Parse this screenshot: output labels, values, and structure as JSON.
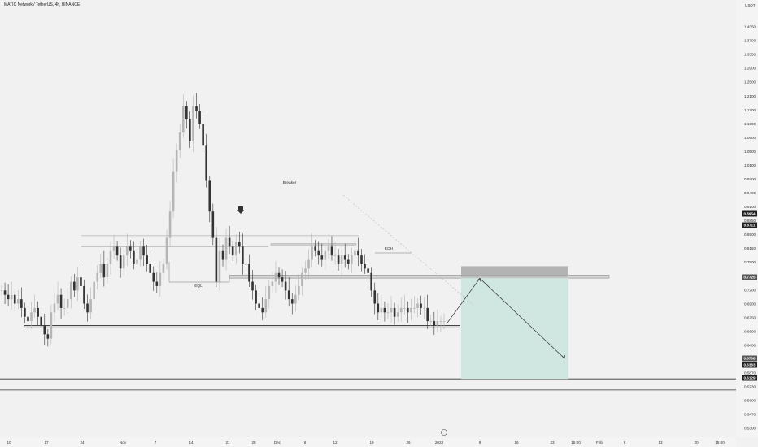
{
  "header": {
    "title": "MATIC Network / TetherUS, 4h, BINANCE"
  },
  "chart_data": {
    "type": "candlestick",
    "title": "MATIC Network / TetherUS, 4h, BINANCE",
    "currency_label": "USDT",
    "ylim": [
      0.52,
      1.48
    ],
    "y_ticks": [
      "1.4350",
      "1.3700",
      "1.3350",
      "1.2900",
      "1.2500",
      "1.2100",
      "1.1700",
      "1.1300",
      "1.0900",
      "1.0500",
      "1.0100",
      "0.9700",
      "0.9400",
      "0.9100",
      "0.8850",
      "0.8500",
      "0.8150",
      "0.7800",
      "0.7500",
      "0.7200",
      "0.6900",
      "0.6750",
      "0.6600",
      "0.6400",
      "0.6010",
      "0.5870",
      "0.5730",
      "0.5600",
      "0.5470",
      "0.5300"
    ],
    "x_ticks": [
      "10",
      "17",
      "24",
      "Nov",
      "7",
      "14",
      "21",
      "28",
      "Dec",
      "6",
      "12",
      "19",
      "26",
      "2023",
      "9",
      "16",
      "23",
      "15:00",
      "Feb",
      "6",
      "13",
      "20",
      "15:00"
    ],
    "price_badges": [
      {
        "value": "0.8954",
        "dark": true
      },
      {
        "value": "0.8711",
        "dark": true
      },
      {
        "value": "0.7725",
        "dark": false
      },
      {
        "value": "0.6708",
        "dark": false
      },
      {
        "value": "0.6383",
        "dark": true
      },
      {
        "value": "0.6129",
        "dark": true
      }
    ],
    "series": [
      {
        "close_path": [
          0.84,
          0.83,
          0.82,
          0.83,
          0.81,
          0.82,
          0.8,
          0.78,
          0.77,
          0.79,
          0.8,
          0.78,
          0.76,
          0.74,
          0.73,
          0.79,
          0.81,
          0.83,
          0.8,
          0.8,
          0.82,
          0.86,
          0.84,
          0.87,
          0.85,
          0.81,
          0.79,
          0.82,
          0.86,
          0.88,
          0.9,
          0.87,
          0.9,
          0.93,
          0.94,
          0.92,
          0.89,
          0.92,
          0.94,
          0.93,
          0.9,
          0.91,
          0.94,
          0.92,
          0.9,
          0.88,
          0.86,
          0.85,
          0.88,
          0.9,
          0.96,
          1.02,
          1.11,
          1.16,
          1.2,
          1.26,
          1.23,
          1.18,
          1.26,
          1.25,
          1.22,
          1.17,
          1.09,
          1.02,
          0.96,
          0.86,
          0.93,
          0.91,
          0.96,
          0.94,
          0.92,
          0.95,
          0.94,
          0.9,
          0.9,
          0.86,
          0.84,
          0.81,
          0.8,
          0.79,
          0.82,
          0.85,
          0.86,
          0.88,
          0.87,
          0.86,
          0.84,
          0.82,
          0.81,
          0.83,
          0.85,
          0.88,
          0.89,
          0.91,
          0.94,
          0.93,
          0.92,
          0.91,
          0.93,
          0.94,
          0.92,
          0.92,
          0.9,
          0.92,
          0.91,
          0.9,
          0.92,
          0.93,
          0.92,
          0.9,
          0.89,
          0.88,
          0.84,
          0.81,
          0.79,
          0.8,
          0.79,
          0.79,
          0.8,
          0.78,
          0.79,
          0.8,
          0.8,
          0.79,
          0.8,
          0.8,
          0.81,
          0.8,
          0.8,
          0.77,
          0.77,
          0.76,
          0.77,
          0.77,
          0.77
        ]
      }
    ],
    "annotations": {
      "labels": [
        "Breaker",
        "EQH",
        "EQL"
      ],
      "arrow_down_marker": true,
      "dashed_trendline": true
    },
    "horizontal_levels": [
      {
        "name": "equal-lows",
        "value": 0.76
      },
      {
        "name": "supply-zone-top",
        "value": 0.875
      },
      {
        "name": "supply-zone-bottom",
        "value": 0.871
      },
      {
        "name": "breaker-level",
        "value": 0.945
      },
      {
        "name": "upper-level-1",
        "value": 0.965
      },
      {
        "name": "upper-level-2",
        "value": 0.94
      }
    ],
    "short_position": {
      "stop_zone": [
        0.871,
        0.8954
      ],
      "entry": 0.871,
      "target": 0.6383
    },
    "full_width_levels": [
      0.6383,
      0.6129
    ],
    "projection_path": [
      0.76,
      0.875,
      0.64
    ]
  }
}
